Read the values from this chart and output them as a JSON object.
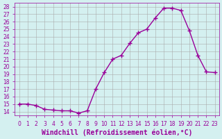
{
  "x": [
    0,
    1,
    2,
    3,
    4,
    5,
    6,
    7,
    8,
    9,
    10,
    11,
    12,
    13,
    14,
    15,
    16,
    17,
    18,
    19,
    20,
    21,
    22,
    23
  ],
  "y": [
    15.0,
    15.0,
    14.8,
    14.3,
    14.2,
    14.1,
    14.1,
    13.8,
    14.1,
    17.0,
    19.2,
    21.0,
    21.5,
    23.1,
    24.5,
    25.0,
    26.5,
    27.8,
    27.8,
    27.5,
    24.8,
    21.5,
    19.3,
    19.2
  ],
  "line_color": "#990099",
  "marker": "+",
  "marker_size": 4,
  "background_color": "#d4f0f0",
  "grid_color": "#aaaaaa",
  "xlabel": "Windchill (Refroidissement éolien,°C)",
  "ylabel": "",
  "ylim": [
    13.5,
    28.5
  ],
  "xlim": [
    -0.5,
    23.5
  ],
  "yticks": [
    14,
    15,
    16,
    17,
    18,
    19,
    20,
    21,
    22,
    23,
    24,
    25,
    26,
    27,
    28
  ],
  "xticks": [
    0,
    1,
    2,
    3,
    4,
    5,
    6,
    7,
    8,
    9,
    10,
    11,
    12,
    13,
    14,
    15,
    16,
    17,
    18,
    19,
    20,
    21,
    22,
    23
  ],
  "tick_color": "#990099",
  "tick_fontsize": 5.5,
  "xlabel_fontsize": 7
}
